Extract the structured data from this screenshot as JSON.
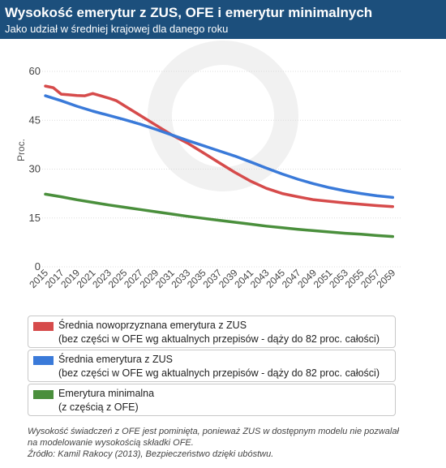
{
  "header": {
    "title": "Wysokość emerytur z ZUS, OFE i emerytur minimalnych",
    "subtitle": "Jako udział w średniej krajowej dla danego roku"
  },
  "colors": {
    "header_bg": "#1c4f7c",
    "red": "#d64b4b",
    "blue": "#3a7ad9",
    "green": "#4a8f3c"
  },
  "chart_data": {
    "type": "line",
    "ylabel": "Proc.",
    "ylim": [
      0,
      60
    ],
    "yticks": [
      0,
      15,
      30,
      45,
      60
    ],
    "xlim": [
      2015,
      2060
    ],
    "xticks": [
      "2015",
      "2017",
      "2019",
      "2021",
      "2023",
      "2025",
      "2027",
      "2029",
      "2031",
      "2033",
      "2035",
      "2037",
      "2039",
      "2041",
      "2043",
      "2045",
      "2047",
      "2049",
      "2051",
      "2053",
      "2055",
      "2057",
      "2059"
    ],
    "grid": "horizontal",
    "series": [
      {
        "name": "Średnia nowoprzyznana emerytura z ZUS",
        "color": "#d64b4b",
        "x": [
          2015,
          2016,
          2017,
          2018,
          2019,
          2020,
          2021,
          2022,
          2023,
          2024,
          2025,
          2027,
          2029,
          2031,
          2033,
          2035,
          2037,
          2039,
          2041,
          2043,
          2045,
          2047,
          2049,
          2051,
          2053,
          2055,
          2057,
          2059
        ],
        "y": [
          55.5,
          55,
          53,
          52.8,
          52.6,
          52.5,
          53.2,
          52.5,
          51.8,
          51,
          49.5,
          46.5,
          43.5,
          40.5,
          38,
          35,
          32,
          29,
          26.3,
          24.1,
          22.5,
          21.5,
          20.6,
          20.1,
          19.6,
          19.2,
          18.8,
          18.5
        ]
      },
      {
        "name": "Średnia emerytura z ZUS",
        "color": "#3a7ad9",
        "x": [
          2015,
          2017,
          2019,
          2021,
          2023,
          2025,
          2027,
          2029,
          2031,
          2033,
          2035,
          2037,
          2039,
          2041,
          2043,
          2045,
          2047,
          2049,
          2051,
          2053,
          2055,
          2057,
          2059
        ],
        "y": [
          52.5,
          51,
          49.3,
          47.8,
          46.5,
          45.2,
          43.8,
          42.2,
          40.5,
          38.8,
          37.2,
          35.6,
          34,
          32.2,
          30.3,
          28.5,
          26.9,
          25.5,
          24.3,
          23.3,
          22.5,
          21.8,
          21.3
        ]
      },
      {
        "name": "Emerytura minimalna",
        "color": "#4a8f3c",
        "x": [
          2015,
          2017,
          2019,
          2021,
          2023,
          2025,
          2027,
          2029,
          2031,
          2033,
          2035,
          2037,
          2039,
          2041,
          2043,
          2045,
          2047,
          2049,
          2051,
          2053,
          2055,
          2057,
          2059
        ],
        "y": [
          22.3,
          21.5,
          20.6,
          19.8,
          19,
          18.3,
          17.6,
          16.9,
          16.2,
          15.5,
          14.9,
          14.3,
          13.7,
          13.1,
          12.5,
          12,
          11.5,
          11.1,
          10.7,
          10.3,
          10,
          9.6,
          9.3
        ]
      }
    ]
  },
  "legend": [
    {
      "line1": "Średnia nowoprzyznana emerytura z ZUS",
      "line2": "(bez części w OFE wg aktualnych przepisów - dąży do 82 proc. całości)"
    },
    {
      "line1": "Średnia emerytura z ZUS",
      "line2": "(bez części w OFE wg aktualnych przepisów - dąży do 82 proc. całości)"
    },
    {
      "line1": "Emerytura minimalna",
      "line2": "(z częścią z OFE)"
    }
  ],
  "footnote": {
    "line1": "Wysokość świadczeń z OFE jest pominięta, ponieważ ZUS w dostępnym modelu nie pozwalał",
    "line2": "na modelowanie wysokością składki OFE.",
    "line3": "Źródło: Kamil Rakocy (2013), Bezpieczeństwo dzięki ubóstwu."
  }
}
